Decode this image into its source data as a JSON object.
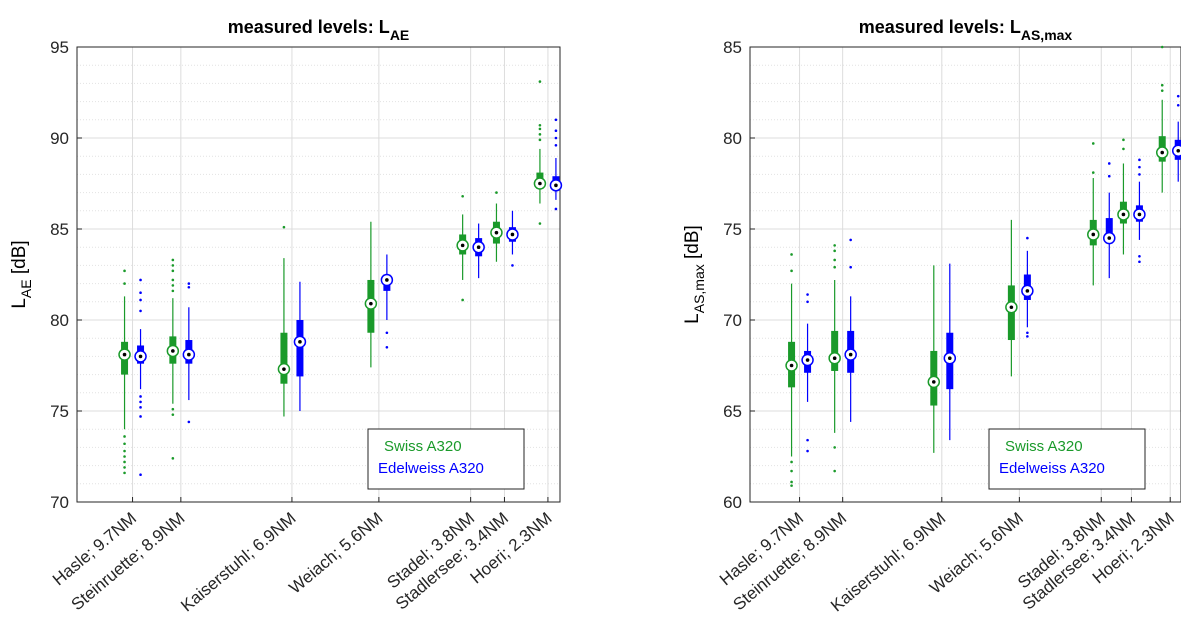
{
  "chart_data": [
    {
      "type": "box",
      "title": "measured levels: L",
      "title_sub": "AE",
      "ylabel": "L",
      "ylabel_sub": "AE",
      "ylabel_unit": " [dB]",
      "ylim": [
        70,
        95
      ],
      "yticks": [
        70,
        75,
        80,
        85,
        90,
        95
      ],
      "grid": true,
      "legend_position": "bottom-right",
      "categories": [
        "Hasle; 9.7NM",
        "Steinruette; 8.9NM",
        "Kaiserstuhl; 6.9NM",
        "Weiach; 5.6NM",
        "Stadel; 3.8NM",
        "Stadlersee; 3.4NM",
        "Hoeri; 2.3NM"
      ],
      "series": [
        {
          "name": "Swiss A320",
          "color": "#1a9a2a",
          "boxes": [
            {
              "median": 78.1,
              "q1": 77.0,
              "q3": 78.8,
              "whislo": 74.0,
              "whishi": 81.3,
              "fliers": [
                71.6,
                71.9,
                72.2,
                72.5,
                72.8,
                73.2,
                73.6,
                82.0,
                82.7
              ]
            },
            {
              "median": 78.3,
              "q1": 77.6,
              "q3": 79.1,
              "whislo": 75.4,
              "whishi": 81.2,
              "fliers": [
                72.4,
                74.8,
                75.1,
                81.6,
                81.9,
                82.2,
                82.7,
                83.0,
                83.3
              ]
            },
            {
              "median": 77.3,
              "q1": 76.5,
              "q3": 79.3,
              "whislo": 74.7,
              "whishi": 83.4,
              "fliers": [
                85.1
              ]
            },
            {
              "median": 80.9,
              "q1": 79.3,
              "q3": 82.2,
              "whislo": 77.4,
              "whishi": 85.4,
              "fliers": []
            },
            {
              "median": 84.1,
              "q1": 83.6,
              "q3": 84.7,
              "whislo": 82.2,
              "whishi": 85.8,
              "fliers": [
                81.1,
                86.8
              ]
            },
            {
              "median": 84.8,
              "q1": 84.2,
              "q3": 85.4,
              "whislo": 83.2,
              "whishi": 86.4,
              "fliers": [
                87.0
              ]
            },
            {
              "median": 87.5,
              "q1": 87.2,
              "q3": 88.1,
              "whislo": 86.4,
              "whishi": 89.4,
              "fliers": [
                85.3,
                89.9,
                90.2,
                90.5,
                90.7,
                93.1
              ]
            }
          ]
        },
        {
          "name": "Edelweiss A320",
          "color": "#0000ff",
          "boxes": [
            {
              "median": 78.0,
              "q1": 77.6,
              "q3": 78.6,
              "whislo": 76.2,
              "whishi": 79.5,
              "fliers": [
                71.5,
                74.7,
                75.2,
                75.5,
                75.8,
                80.5,
                81.1,
                81.5,
                82.2
              ]
            },
            {
              "median": 78.1,
              "q1": 77.6,
              "q3": 78.9,
              "whislo": 75.6,
              "whishi": 80.7,
              "fliers": [
                74.4,
                81.8,
                82.0
              ]
            },
            {
              "median": 78.8,
              "q1": 76.9,
              "q3": 80.0,
              "whislo": 75.0,
              "whishi": 82.1,
              "fliers": []
            },
            {
              "median": 82.2,
              "q1": 81.6,
              "q3": 82.5,
              "whislo": 80.0,
              "whishi": 83.6,
              "fliers": [
                78.5,
                79.3
              ]
            },
            {
              "median": 84.0,
              "q1": 83.5,
              "q3": 84.5,
              "whislo": 82.3,
              "whishi": 85.3,
              "fliers": []
            },
            {
              "median": 84.7,
              "q1": 84.3,
              "q3": 85.1,
              "whislo": 83.6,
              "whishi": 86.0,
              "fliers": [
                83.0
              ]
            },
            {
              "median": 87.4,
              "q1": 87.3,
              "q3": 87.9,
              "whislo": 86.6,
              "whishi": 88.9,
              "fliers": [
                86.1,
                89.6,
                90.0,
                90.4,
                91.0
              ]
            }
          ]
        }
      ]
    },
    {
      "type": "box",
      "title": "measured levels: L",
      "title_sub": "AS,max",
      "ylabel": "L",
      "ylabel_sub": "AS,max",
      "ylabel_unit": " [dB]",
      "ylim": [
        60,
        85
      ],
      "yticks": [
        60,
        65,
        70,
        75,
        80,
        85
      ],
      "grid": true,
      "legend_position": "bottom-right",
      "categories": [
        "Hasle; 9.7NM",
        "Steinruette; 8.9NM",
        "Kaiserstuhl; 6.9NM",
        "Weiach; 5.6NM",
        "Stadel; 3.8NM",
        "Stadlersee; 3.4NM",
        "Hoeri; 2.3NM"
      ],
      "series": [
        {
          "name": "Swiss A320",
          "color": "#1a9a2a",
          "boxes": [
            {
              "median": 67.5,
              "q1": 66.3,
              "q3": 68.8,
              "whislo": 62.5,
              "whishi": 72.0,
              "fliers": [
                60.9,
                61.1,
                61.7,
                62.2,
                72.7,
                73.6
              ]
            },
            {
              "median": 67.9,
              "q1": 67.2,
              "q3": 69.4,
              "whislo": 63.8,
              "whishi": 72.2,
              "fliers": [
                61.7,
                63.0,
                72.9,
                73.3,
                73.8,
                74.1
              ]
            },
            {
              "median": 66.6,
              "q1": 65.3,
              "q3": 68.3,
              "whislo": 62.7,
              "whishi": 73.0,
              "fliers": []
            },
            {
              "median": 70.7,
              "q1": 68.9,
              "q3": 71.9,
              "whislo": 66.9,
              "whishi": 75.5,
              "fliers": []
            },
            {
              "median": 74.7,
              "q1": 74.1,
              "q3": 75.5,
              "whislo": 71.9,
              "whishi": 77.8,
              "fliers": [
                78.1,
                79.7
              ]
            },
            {
              "median": 75.8,
              "q1": 75.3,
              "q3": 76.5,
              "whislo": 73.6,
              "whishi": 78.6,
              "fliers": [
                79.4,
                79.9
              ]
            },
            {
              "median": 79.2,
              "q1": 78.7,
              "q3": 80.1,
              "whislo": 77.0,
              "whishi": 82.1,
              "fliers": [
                82.6,
                82.9,
                85.0
              ]
            }
          ]
        },
        {
          "name": "Edelweiss A320",
          "color": "#0000ff",
          "boxes": [
            {
              "median": 67.8,
              "q1": 67.1,
              "q3": 68.3,
              "whislo": 65.5,
              "whishi": 69.8,
              "fliers": [
                62.8,
                63.4,
                71.0,
                71.4
              ]
            },
            {
              "median": 68.1,
              "q1": 67.1,
              "q3": 69.4,
              "whislo": 64.4,
              "whishi": 71.3,
              "fliers": [
                72.9,
                74.4
              ]
            },
            {
              "median": 67.9,
              "q1": 66.2,
              "q3": 69.3,
              "whislo": 63.4,
              "whishi": 73.1,
              "fliers": []
            },
            {
              "median": 71.6,
              "q1": 71.1,
              "q3": 72.5,
              "whislo": 69.6,
              "whishi": 73.8,
              "fliers": [
                69.1,
                69.3,
                74.5
              ]
            },
            {
              "median": 74.5,
              "q1": 74.2,
              "q3": 75.6,
              "whislo": 72.3,
              "whishi": 77.0,
              "fliers": [
                77.9,
                78.6
              ]
            },
            {
              "median": 75.8,
              "q1": 75.4,
              "q3": 76.3,
              "whislo": 74.4,
              "whishi": 77.6,
              "fliers": [
                73.2,
                73.5,
                78.0,
                78.4,
                78.8
              ]
            },
            {
              "median": 79.3,
              "q1": 78.8,
              "q3": 79.9,
              "whislo": 77.6,
              "whishi": 80.9,
              "fliers": [
                81.8,
                82.3
              ]
            }
          ]
        }
      ]
    }
  ]
}
